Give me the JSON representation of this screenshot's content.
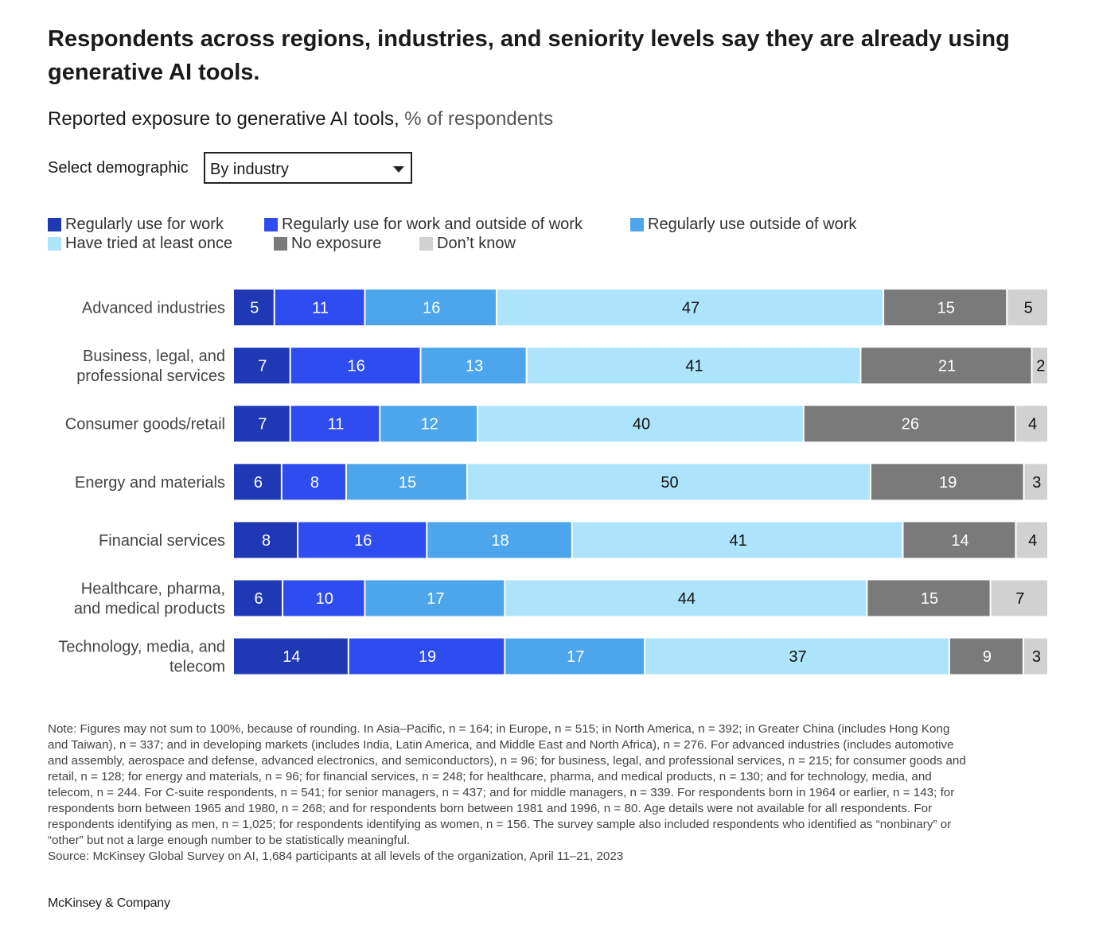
{
  "title": "Respondents across regions, industries, and seniority levels say they are already using generative AI tools.",
  "subtitle": {
    "main": "Reported exposure to generative AI tools,",
    "unit": "% of respondents"
  },
  "selector": {
    "label": "Select demographic",
    "value": "By industry"
  },
  "colors": {
    "regular_work": "#1f39b5",
    "regular_both": "#2f4cf0",
    "regular_outside": "#4da6ec",
    "tried_once": "#aee4fb",
    "no_exposure": "#7a7a7a",
    "dont_know": "#d1d1d1"
  },
  "chart_data": {
    "type": "bar",
    "orientation": "horizontal",
    "stacked": true,
    "categories": [
      [
        "Advanced industries"
      ],
      [
        "Business, legal, and",
        "professional services"
      ],
      [
        "Consumer goods/retail"
      ],
      [
        "Energy and materials"
      ],
      [
        "Financial services"
      ],
      [
        "Healthcare, pharma,",
        "and medical products"
      ],
      [
        "Technology, media, and",
        "telecom"
      ]
    ],
    "series": [
      {
        "name": "Regularly use for work",
        "color": "#1f39b5",
        "label_color": "#ffffff",
        "values": [
          5,
          7,
          7,
          6,
          8,
          6,
          14
        ]
      },
      {
        "name": "Regularly use for work and outside of work",
        "color": "#2f4cf0",
        "label_color": "#ffffff",
        "values": [
          11,
          16,
          11,
          8,
          16,
          10,
          19
        ]
      },
      {
        "name": "Regularly use outside of work",
        "color": "#4da6ec",
        "label_color": "#ffffff",
        "values": [
          16,
          13,
          12,
          15,
          18,
          17,
          17
        ]
      },
      {
        "name": "Have tried at least once",
        "color": "#aee4fb",
        "label_color": "#111111",
        "values": [
          47,
          41,
          40,
          50,
          41,
          44,
          37
        ]
      },
      {
        "name": "No exposure",
        "color": "#7a7a7a",
        "label_color": "#ffffff",
        "values": [
          15,
          21,
          26,
          19,
          14,
          15,
          9
        ]
      },
      {
        "name": "Don’t know",
        "color": "#d1d1d1",
        "label_color": "#111111",
        "values": [
          5,
          2,
          4,
          3,
          4,
          7,
          3
        ]
      }
    ],
    "legend_position": "top-left",
    "grid": false
  },
  "note_lines": [
    "Note: Figures may not sum to 100%, because of rounding. In Asia–Pacific, n = 164; in Europe, n = 515; in North America, n = 392; in Greater China (includes Hong Kong",
    "and Taiwan), n = 337; and in developing markets (includes India, Latin America, and Middle East and North Africa), n = 276. For advanced industries (includes automotive",
    "and assembly, aerospace and defense, advanced electronics, and semiconductors), n = 96; for business, legal, and professional services, n = 215; for consumer goods and",
    "retail, n = 128; for energy and materials, n = 96; for financial services, n = 248; for healthcare, pharma, and medical products, n = 130; and for technology, media, and",
    "telecom, n = 244. For C-suite respondents, n = 541; for senior managers, n = 437; and for middle managers, n = 339. For respondents born in 1964 or earlier, n = 143; for",
    "respondents born between 1965 and 1980, n = 268; and for respondents born between 1981 and 1996, n = 80. Age details were not available for all respondents. For",
    "respondents identifying as men, n = 1,025; for respondents identifying as women, n = 156. The survey sample also included respondents who identified as “nonbinary” or",
    "“other” but not a large enough number to be statistically meaningful."
  ],
  "source": "Source: McKinsey Global Survey on AI, 1,684 participants at all levels of the organization, April 11–21, 2023",
  "brand": "McKinsey & Company"
}
